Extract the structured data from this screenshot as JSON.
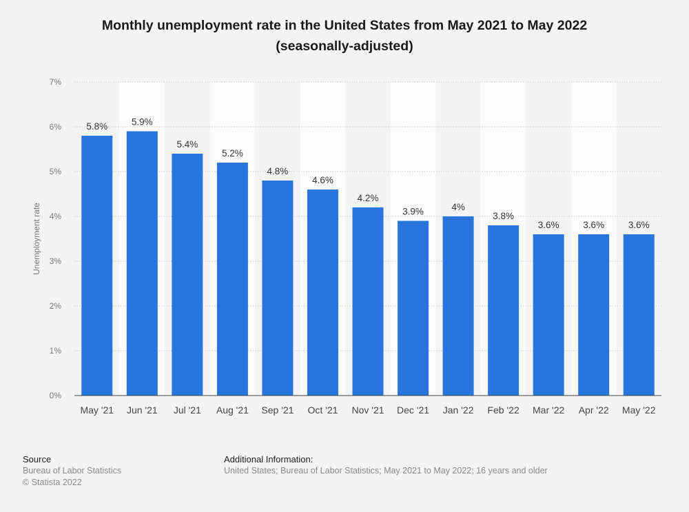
{
  "title": {
    "line1": "Monthly unemployment rate in the United States from May 2021 to May 2022",
    "line2": "(seasonally-adjusted)"
  },
  "chart_data": {
    "type": "bar",
    "categories": [
      "May '21",
      "Jun '21",
      "Jul '21",
      "Aug '21",
      "Sep '21",
      "Oct '21",
      "Nov '21",
      "Dec '21",
      "Jan '22",
      "Feb '22",
      "Mar '22",
      "Apr '22",
      "May '22"
    ],
    "values": [
      5.8,
      5.9,
      5.4,
      5.2,
      4.8,
      4.6,
      4.2,
      3.9,
      4.0,
      3.8,
      3.6,
      3.6,
      3.6
    ],
    "value_labels": [
      "5.8%",
      "5.9%",
      "5.4%",
      "5.2%",
      "4.8%",
      "4.6%",
      "4.2%",
      "3.9%",
      "4%",
      "3.8%",
      "3.6%",
      "3.6%",
      "3.6%"
    ],
    "ylabel": "Unemployment rate",
    "ylim": [
      0,
      7
    ],
    "yticks": [
      0,
      1,
      2,
      3,
      4,
      5,
      6,
      7
    ],
    "ytick_labels": [
      "0%",
      "1%",
      "2%",
      "3%",
      "4%",
      "5%",
      "6%",
      "7%"
    ],
    "grid": true,
    "bar_color": "#2876dd"
  },
  "footer": {
    "source_heading": "Source",
    "source_lines": [
      "Bureau of Labor Statistics",
      "© Statista 2022"
    ],
    "info_heading": "Additional Information:",
    "info_text": "United States; Bureau of Labor Statistics; May 2021 to May 2022; 16 years and older"
  }
}
